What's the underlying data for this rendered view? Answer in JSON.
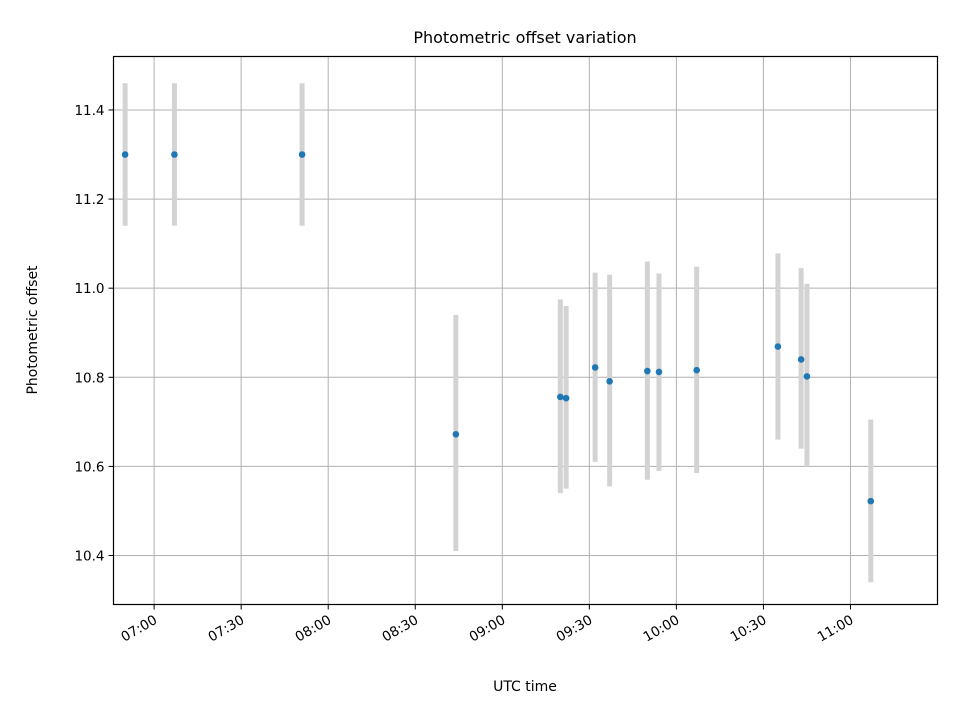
{
  "chart_data": {
    "type": "scatter",
    "title": "Photometric offset variation",
    "xlabel": "UTC time",
    "ylabel": "Photometric offset",
    "x_tick_labels": [
      "07:00",
      "07:30",
      "08:00",
      "08:30",
      "09:00",
      "09:30",
      "10:00",
      "10:30",
      "11:00"
    ],
    "x_tick_values": [
      "07:00",
      "07:30",
      "08:00",
      "08:30",
      "09:00",
      "09:30",
      "10:00",
      "10:30",
      "11:00"
    ],
    "y_ticks": [
      10.4,
      10.6,
      10.8,
      11.0,
      11.2,
      11.4
    ],
    "y_tick_labels": [
      "10.4",
      "10.6",
      "10.8",
      "11.0",
      "11.2",
      "11.4"
    ],
    "xlim": [
      "06:46",
      "11:30"
    ],
    "ylim": [
      10.29,
      11.52
    ],
    "grid": true,
    "marker_color": "#1f77b4",
    "errorbar_color": "#d3d3d3",
    "points": [
      {
        "x": "06:50",
        "y": 11.3,
        "err_low": 11.14,
        "err_high": 11.46
      },
      {
        "x": "07:07",
        "y": 11.3,
        "err_low": 11.14,
        "err_high": 11.46
      },
      {
        "x": "07:51",
        "y": 11.3,
        "err_low": 11.14,
        "err_high": 11.46
      },
      {
        "x": "08:44",
        "y": 10.672,
        "err_low": 10.41,
        "err_high": 10.94
      },
      {
        "x": "09:20",
        "y": 10.756,
        "err_low": 10.54,
        "err_high": 10.975
      },
      {
        "x": "09:22",
        "y": 10.753,
        "err_low": 10.55,
        "err_high": 10.96
      },
      {
        "x": "09:32",
        "y": 10.822,
        "err_low": 10.61,
        "err_high": 11.035
      },
      {
        "x": "09:37",
        "y": 10.791,
        "err_low": 10.555,
        "err_high": 11.03
      },
      {
        "x": "09:50",
        "y": 10.814,
        "err_low": 10.57,
        "err_high": 11.06
      },
      {
        "x": "09:54",
        "y": 10.812,
        "err_low": 10.59,
        "err_high": 11.033
      },
      {
        "x": "10:07",
        "y": 10.816,
        "err_low": 10.585,
        "err_high": 11.048
      },
      {
        "x": "10:35",
        "y": 10.869,
        "err_low": 10.66,
        "err_high": 11.078
      },
      {
        "x": "10:43",
        "y": 10.84,
        "err_low": 10.64,
        "err_high": 11.045
      },
      {
        "x": "10:45",
        "y": 10.802,
        "err_low": 10.6,
        "err_high": 11.01
      },
      {
        "x": "11:07",
        "y": 10.522,
        "err_low": 10.34,
        "err_high": 10.705
      }
    ]
  }
}
